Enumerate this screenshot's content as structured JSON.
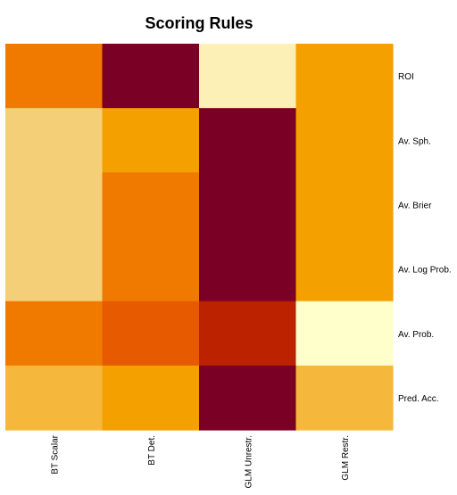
{
  "chart_data": {
    "type": "heatmap",
    "title": "Scoring Rules",
    "columns": [
      "BT Scalar",
      "BT Det.",
      "GLM Unrestr.",
      "GLM Restr."
    ],
    "rows": [
      "ROI",
      "Av. Sph.",
      "Av. Brier",
      "Av. Log Prob.",
      "Av. Prob.",
      "Pred. Acc."
    ],
    "value_scale": [
      0,
      1
    ],
    "values": [
      [
        0.32,
        0.0,
        0.88,
        0.45
      ],
      [
        0.7,
        0.45,
        0.0,
        0.45
      ],
      [
        0.7,
        0.32,
        0.0,
        0.45
      ],
      [
        0.7,
        0.32,
        0.0,
        0.45
      ],
      [
        0.28,
        0.22,
        0.1,
        1.0
      ],
      [
        0.6,
        0.45,
        0.0,
        0.6
      ]
    ],
    "colors": {
      "ramp": [
        "#7a0026",
        "#bd2200",
        "#e85a00",
        "#f07a00",
        "#f4a000",
        "#f6b83c",
        "#f4cf78",
        "#fbe4a4",
        "#fdf0b6",
        "#ffffcc"
      ]
    },
    "grid": false,
    "legend": "none"
  }
}
